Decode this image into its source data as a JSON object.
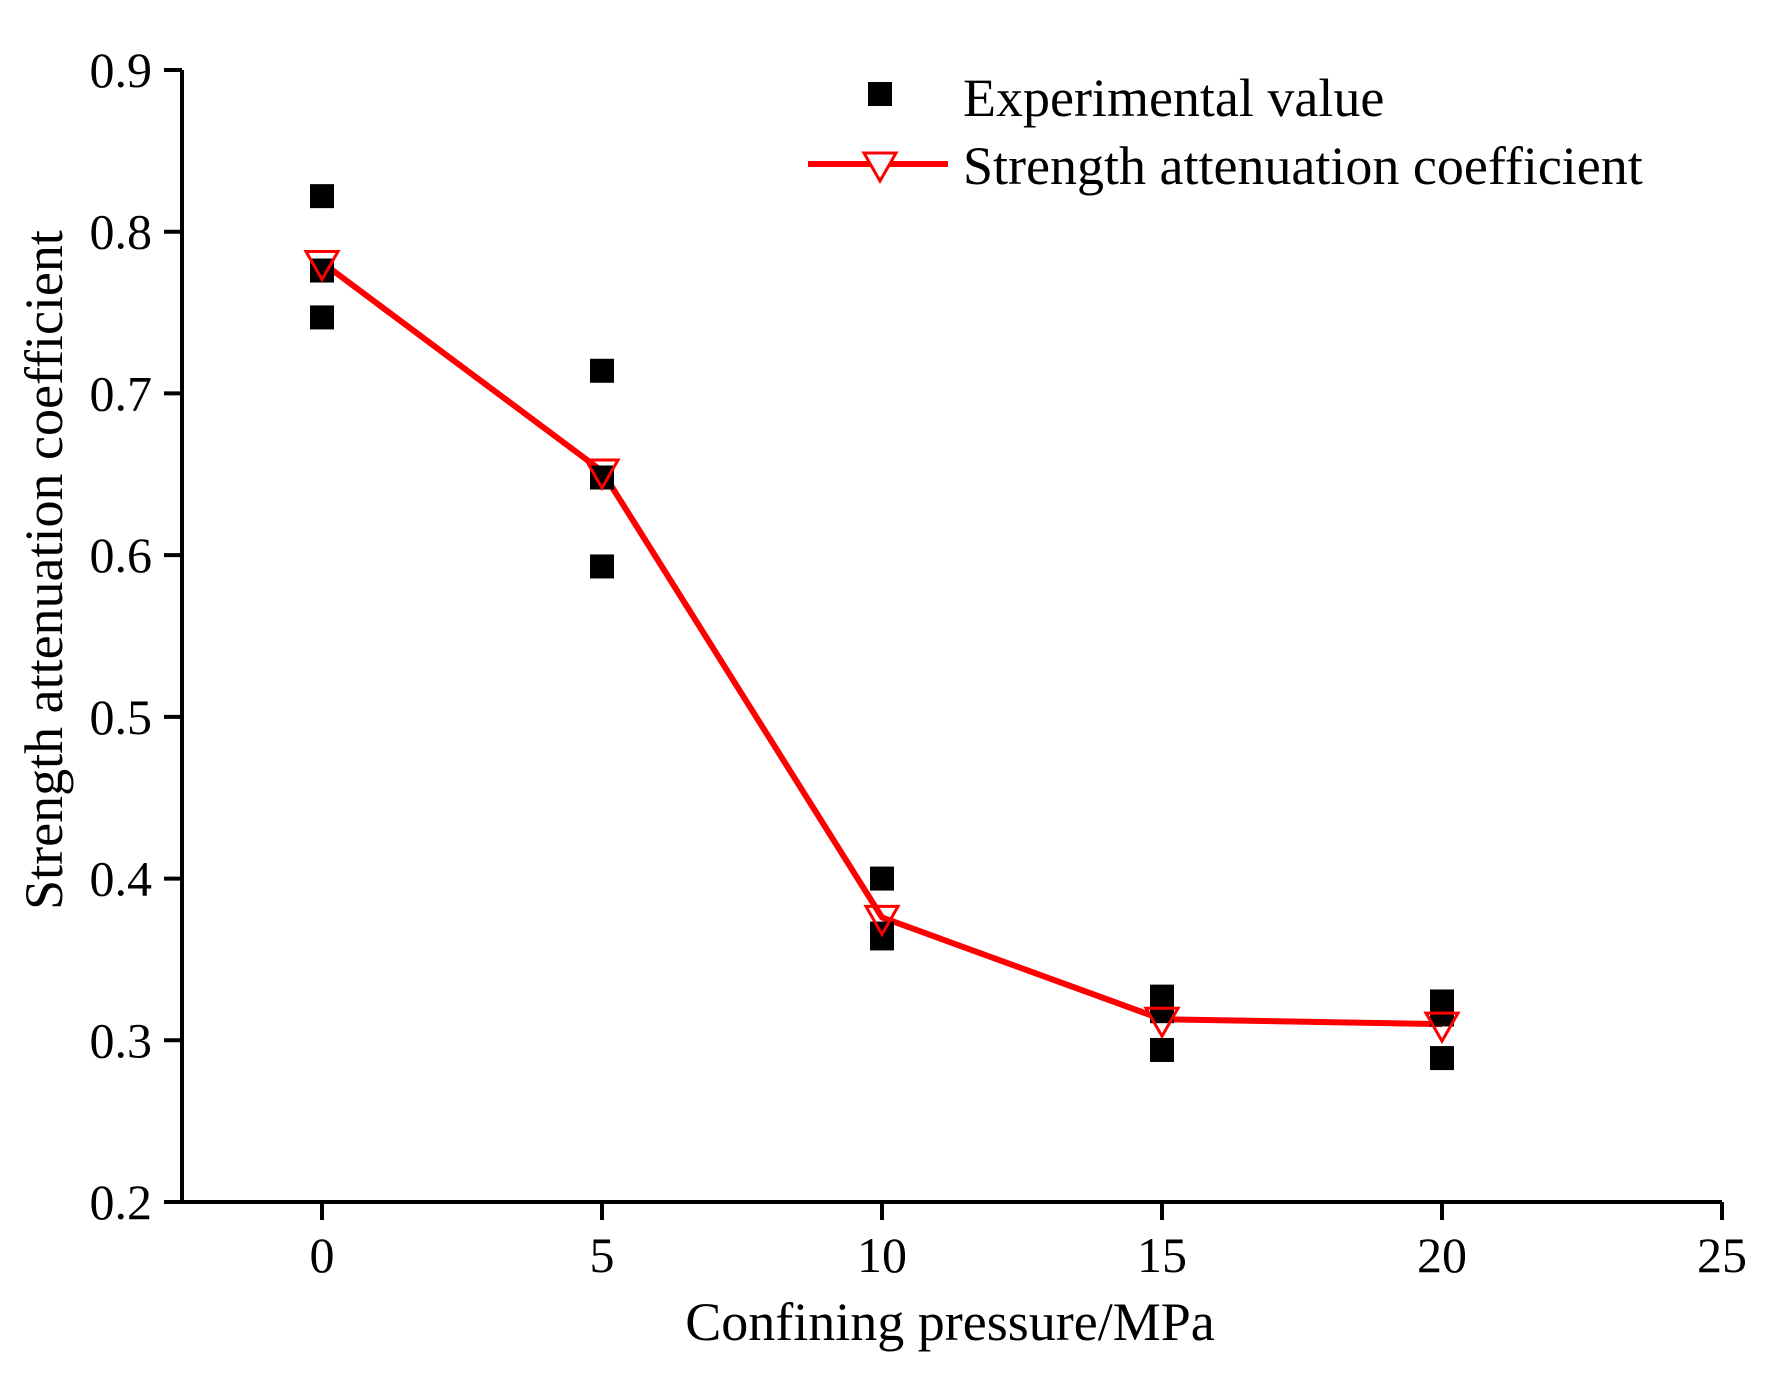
{
  "chart_data": {
    "type": "scatter",
    "title": "",
    "xlabel": "Confining pressure/MPa",
    "ylabel": "Strength attenuation coefficient",
    "xlim": [
      -2.5,
      25
    ],
    "ylim": [
      0.2,
      0.9
    ],
    "xticks": [
      "0",
      "5",
      "10",
      "15",
      "20",
      "25"
    ],
    "xtick_values": [
      0,
      5,
      10,
      15,
      20,
      25
    ],
    "yticks": [
      "0.2",
      "0.3",
      "0.4",
      "0.5",
      "0.6",
      "0.7",
      "0.8",
      "0.9"
    ],
    "ytick_values": [
      0.2,
      0.3,
      0.4,
      0.5,
      0.6,
      0.7,
      0.8,
      0.9
    ],
    "grid": false,
    "legend_position": "top-right",
    "series": [
      {
        "name": "Experimental value",
        "kind": "scatter",
        "marker": "square",
        "color": "#000000",
        "points": [
          [
            0,
            0.822
          ],
          [
            0,
            0.776
          ],
          [
            0,
            0.747
          ],
          [
            5,
            0.714
          ],
          [
            5,
            0.648
          ],
          [
            5,
            0.593
          ],
          [
            10,
            0.4
          ],
          [
            10,
            0.366
          ],
          [
            10,
            0.363
          ],
          [
            15,
            0.327
          ],
          [
            15,
            0.318
          ],
          [
            15,
            0.294
          ],
          [
            20,
            0.324
          ],
          [
            20,
            0.316
          ],
          [
            20,
            0.289
          ]
        ]
      },
      {
        "name": "Strength attenuation coefficient",
        "kind": "line",
        "marker": "triangle-down-open",
        "color": "#ff0000",
        "points": [
          [
            0,
            0.781
          ],
          [
            5,
            0.652
          ],
          [
            10,
            0.376
          ],
          [
            15,
            0.313
          ],
          [
            20,
            0.31
          ]
        ]
      }
    ]
  }
}
